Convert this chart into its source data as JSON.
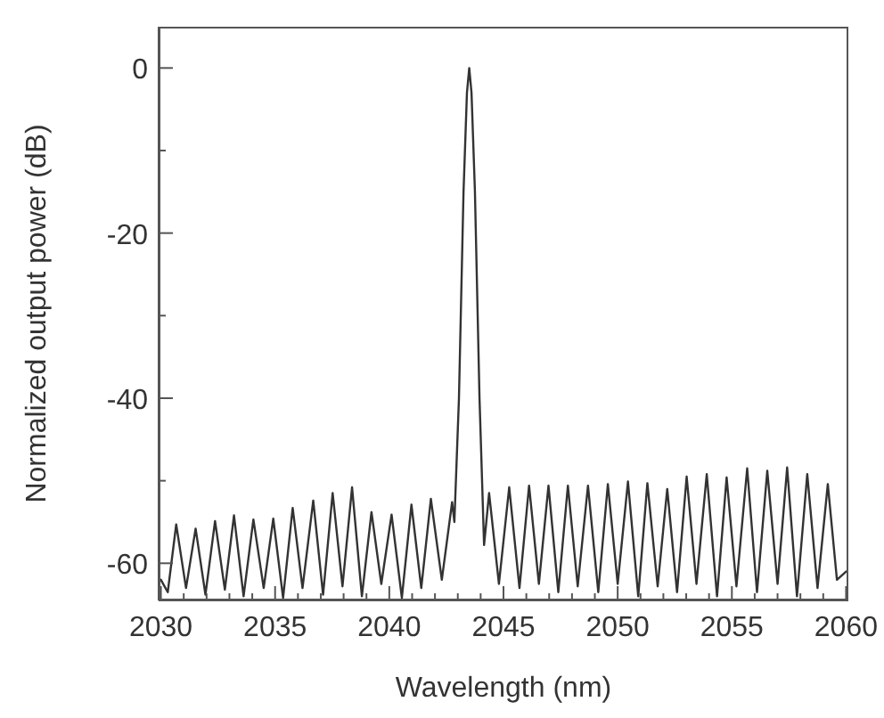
{
  "chart_data": {
    "type": "line",
    "xlabel": "Wavelength (nm)",
    "ylabel": "Normalized output power (dB)",
    "x": [
      2030.0,
      2030.3,
      2030.67,
      2031.1,
      2031.52,
      2031.95,
      2032.37,
      2032.8,
      2033.2,
      2033.62,
      2034.05,
      2034.5,
      2034.92,
      2035.35,
      2035.77,
      2036.2,
      2036.67,
      2037.1,
      2037.52,
      2037.95,
      2038.37,
      2038.8,
      2039.22,
      2039.65,
      2040.1,
      2040.55,
      2040.97,
      2041.4,
      2041.82,
      2042.3,
      2042.75,
      2042.85,
      2043.05,
      2043.25,
      2043.4,
      2043.5,
      2043.6,
      2043.75,
      2043.95,
      2044.15,
      2044.37,
      2044.8,
      2045.25,
      2045.7,
      2046.12,
      2046.55,
      2046.97,
      2047.4,
      2047.82,
      2048.25,
      2048.7,
      2049.15,
      2049.57,
      2050.0,
      2050.45,
      2050.9,
      2051.3,
      2051.75,
      2052.17,
      2052.6,
      2053.02,
      2053.45,
      2053.9,
      2054.35,
      2054.77,
      2055.2,
      2055.67,
      2056.1,
      2056.55,
      2057.0,
      2057.42,
      2057.85,
      2058.3,
      2058.75,
      2059.2,
      2059.6,
      2060.0
    ],
    "series": [
      {
        "color": "#333333",
        "values": [
          -62.0,
          -63.5,
          -55.3,
          -63.0,
          -55.8,
          -63.8,
          -54.9,
          -63.2,
          -54.2,
          -64.0,
          -54.7,
          -63.0,
          -54.6,
          -64.2,
          -53.3,
          -63.0,
          -52.4,
          -63.8,
          -51.5,
          -62.8,
          -50.8,
          -64.0,
          -53.8,
          -62.5,
          -54.1,
          -64.2,
          -52.9,
          -63.0,
          -52.2,
          -62.0,
          -52.6,
          -55.0,
          -40.0,
          -15.0,
          -3.0,
          0,
          -3.0,
          -15.0,
          -40.0,
          -57.8,
          -51.5,
          -62.5,
          -50.8,
          -63.0,
          -50.6,
          -62.5,
          -50.6,
          -63.5,
          -50.6,
          -62.8,
          -50.6,
          -63.5,
          -50.4,
          -62.5,
          -50.1,
          -64.0,
          -50.3,
          -62.8,
          -51.0,
          -63.5,
          -49.5,
          -62.5,
          -49.2,
          -64.0,
          -49.6,
          -62.8,
          -48.5,
          -63.5,
          -48.8,
          -62.5,
          -48.4,
          -64.0,
          -49.2,
          -63.0,
          -50.4,
          -62.0,
          -61.0
        ]
      }
    ],
    "xlim": [
      2029.9,
      2060.1
    ],
    "xticks": [
      2030,
      {
        "value": 2031,
        "label": null
      },
      {
        "value": 2032,
        "label": null
      },
      {
        "value": 2033,
        "label": null
      },
      {
        "value": 2034,
        "label": null
      },
      2035,
      {
        "value": 2036,
        "label": null
      },
      {
        "value": 2037,
        "label": null
      },
      {
        "value": 2038,
        "label": null
      },
      {
        "value": 2039,
        "label": null
      },
      2040,
      {
        "value": 2041,
        "label": null
      },
      {
        "value": 2042,
        "label": null
      },
      {
        "value": 2043,
        "label": null
      },
      {
        "value": 2044,
        "label": null
      },
      2045,
      {
        "value": 2046,
        "label": null
      },
      {
        "value": 2047,
        "label": null
      },
      {
        "value": 2048,
        "label": null
      },
      {
        "value": 2049,
        "label": null
      },
      2050,
      {
        "value": 2051,
        "label": null
      },
      {
        "value": 2052,
        "label": null
      },
      {
        "value": 2053,
        "label": null
      },
      {
        "value": 2054,
        "label": null
      },
      2055,
      {
        "value": 2056,
        "label": null
      },
      {
        "value": 2057,
        "label": null
      },
      {
        "value": 2058,
        "label": null
      },
      {
        "value": 2059,
        "label": null
      },
      2060
    ],
    "ylim": [
      -64.5,
      5
    ],
    "yticks": [
      -60,
      {
        "value": -50,
        "label": null
      },
      -40,
      {
        "value": -30,
        "label": null
      },
      -20,
      {
        "value": -10,
        "label": null
      },
      0
    ],
    "grid": false,
    "legend": false,
    "marker": "none",
    "line_style": "solid"
  }
}
